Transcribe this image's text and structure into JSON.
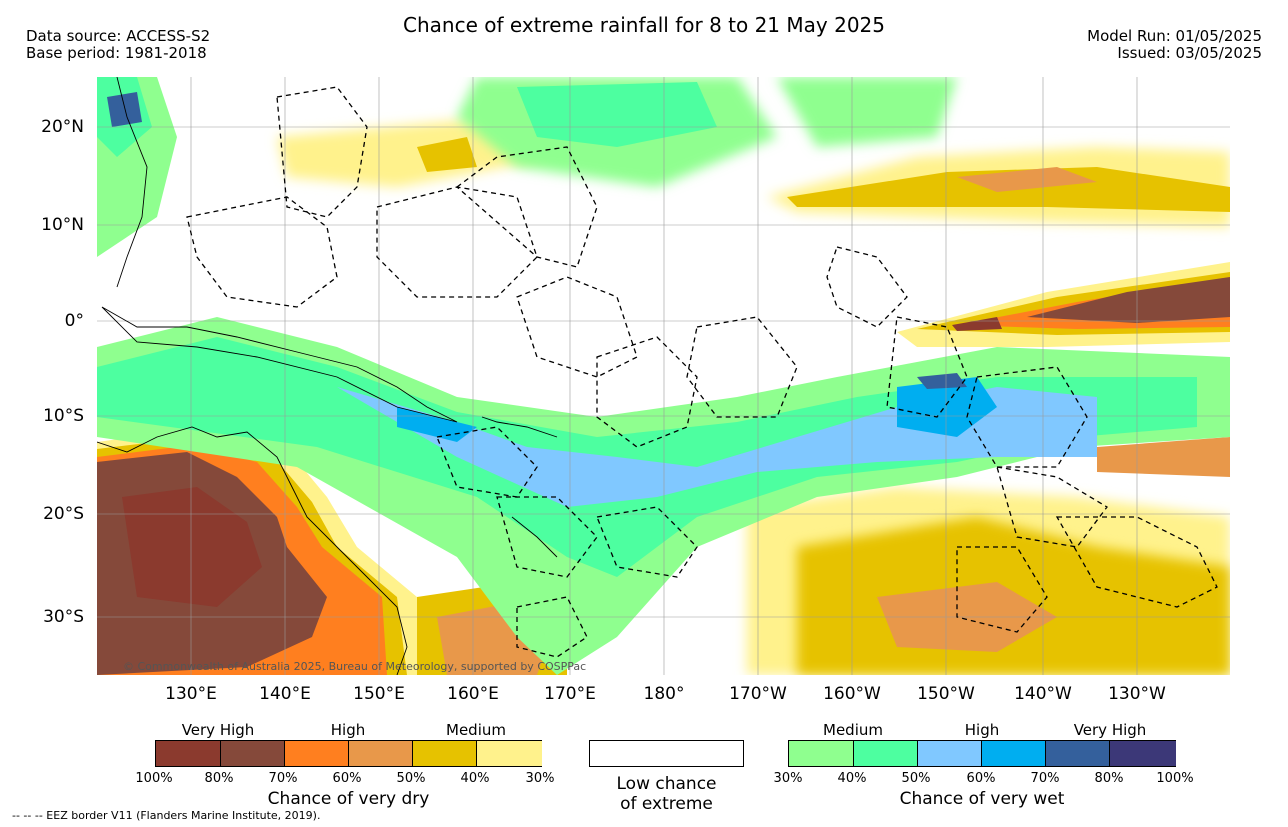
{
  "title": "Chance of extreme rainfall for 8 to 21 May 2025",
  "header_left": {
    "line1": "Data source: ACCESS-S2",
    "line2": "Base period: 1981-2018"
  },
  "header_right": {
    "line1": "Model Run: 01/05/2025",
    "line2": "Issued: 03/05/2025"
  },
  "axes": {
    "lat_labels": [
      "20°N",
      "10°N",
      "0°",
      "10°S",
      "20°S",
      "30°S"
    ],
    "lon_labels": [
      "130°E",
      "140°E",
      "150°E",
      "160°E",
      "170°E",
      "180°",
      "170°W",
      "160°W",
      "150°W",
      "140°W",
      "130°W"
    ]
  },
  "copyright": "© Commonwealth of Australia 2025, Bureau of Meteorology, supported by COSPPac",
  "legend_dry": {
    "levels": [
      "Very High",
      "High",
      "Medium"
    ],
    "ticks": [
      "100%",
      "80%",
      "70%",
      "60%",
      "50%",
      "40%",
      "30%"
    ],
    "colors": [
      "#8b3a2e",
      "#85493a",
      "#ff7f1f",
      "#e8984a",
      "#e6c200",
      "#fff28c"
    ],
    "caption": "Chance of very dry"
  },
  "legend_low": {
    "line1": "Low chance",
    "line2": "of extreme"
  },
  "legend_wet": {
    "levels": [
      "Medium",
      "High",
      "Very High"
    ],
    "ticks": [
      "30%",
      "40%",
      "50%",
      "60%",
      "70%",
      "80%",
      "100%"
    ],
    "colors": [
      "#8fff8f",
      "#4dffa0",
      "#80c8ff",
      "#00aef0",
      "#34609c",
      "#3c3878"
    ],
    "caption": "Chance of very wet"
  },
  "eez_note": "-- -- -- EEZ border V11 (Flanders Marine Institute, 2019)."
}
